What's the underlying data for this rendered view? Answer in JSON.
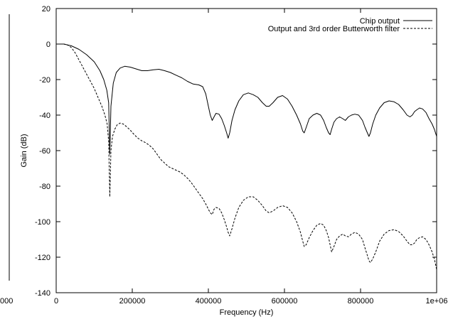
{
  "chart_data": {
    "type": "line",
    "xlabel": "Frequency (Hz)",
    "ylabel": "Gain (dB)",
    "xlim": [
      0,
      1000000
    ],
    "ylim": [
      -140,
      20
    ],
    "xticks": [
      0,
      200000,
      400000,
      600000,
      800000,
      1000000
    ],
    "xtick_labels": [
      "0",
      "200000",
      "400000",
      "600000",
      "800000",
      "1e+06"
    ],
    "yticks": [
      -140,
      -120,
      -100,
      -80,
      -60,
      -40,
      -20,
      0,
      20
    ],
    "ytick_labels": [
      "-140",
      "-120",
      "-100",
      "-80",
      "-60",
      "-40",
      "-20",
      "0",
      "20"
    ],
    "left_edge_fragment": "000",
    "grid": false,
    "legend_position": "top-right",
    "series": [
      {
        "name": "Chip output",
        "style": "solid",
        "color": "#000000",
        "x": [
          0,
          20000,
          40000,
          60000,
          80000,
          100000,
          115000,
          125000,
          133000,
          138000,
          141000,
          144000,
          150000,
          158000,
          168000,
          180000,
          195000,
          210000,
          225000,
          240000,
          255000,
          270000,
          285000,
          300000,
          315000,
          330000,
          345000,
          360000,
          375000,
          385000,
          393000,
          400000,
          405000,
          410000,
          415000,
          420000,
          428000,
          435000,
          442000,
          448000,
          452000,
          456000,
          462000,
          470000,
          480000,
          492000,
          505000,
          518000,
          530000,
          542000,
          552000,
          560000,
          570000,
          582000,
          595000,
          608000,
          620000,
          632000,
          642000,
          648000,
          652000,
          657000,
          665000,
          675000,
          685000,
          695000,
          703000,
          710000,
          716000,
          720000,
          724000,
          730000,
          737000,
          745000,
          753000,
          760000,
          768000,
          776000,
          785000,
          795000,
          805000,
          812000,
          818000,
          822000,
          826000,
          832000,
          840000,
          850000,
          862000,
          875000,
          888000,
          900000,
          912000,
          922000,
          930000,
          936000,
          942000,
          948000,
          955000,
          963000,
          972000,
          980000,
          988000,
          994000,
          1000000
        ],
        "y": [
          0,
          0,
          -1,
          -3,
          -6,
          -10,
          -15,
          -20,
          -26,
          -33,
          -62,
          -35,
          -22,
          -16,
          -13.5,
          -12.5,
          -13,
          -14,
          -15,
          -15,
          -14.5,
          -14.2,
          -15,
          -16,
          -17.5,
          -19,
          -21,
          -22.5,
          -23,
          -24,
          -28,
          -35,
          -40,
          -43,
          -41,
          -39,
          -39.5,
          -42,
          -46,
          -50,
          -53,
          -50,
          -43,
          -37,
          -32,
          -28.5,
          -27.5,
          -28.5,
          -30,
          -33,
          -35,
          -35,
          -33,
          -30,
          -29,
          -31,
          -35,
          -40,
          -45,
          -49,
          -50,
          -47,
          -42,
          -40,
          -39,
          -40,
          -43,
          -47,
          -50,
          -51,
          -48,
          -44,
          -42,
          -41,
          -42,
          -43,
          -41,
          -40,
          -39.5,
          -40,
          -43,
          -47,
          -50,
          -52,
          -50,
          -45,
          -40,
          -36,
          -33,
          -32,
          -32.5,
          -34,
          -37,
          -40,
          -41,
          -40,
          -38,
          -37,
          -36,
          -36.5,
          -38.5,
          -42,
          -45,
          -48,
          -52
        ]
      },
      {
        "name": "Output and 3rd order Butterworth filter",
        "style": "dashed",
        "color": "#000000",
        "x": [
          0,
          20000,
          30000,
          40000,
          50000,
          60000,
          70000,
          80000,
          90000,
          100000,
          110000,
          120000,
          128000,
          134000,
          138000,
          141000,
          144000,
          148000,
          154000,
          160000,
          168000,
          176000,
          185000,
          195000,
          205000,
          215000,
          225000,
          235000,
          245000,
          255000,
          265000,
          275000,
          285000,
          295000,
          305000,
          315000,
          325000,
          335000,
          345000,
          355000,
          365000,
          375000,
          385000,
          393000,
          400000,
          405000,
          410000,
          415000,
          420000,
          428000,
          435000,
          442000,
          448000,
          452000,
          456000,
          462000,
          470000,
          480000,
          492000,
          505000,
          518000,
          530000,
          542000,
          552000,
          560000,
          570000,
          582000,
          595000,
          608000,
          620000,
          632000,
          642000,
          648000,
          652000,
          657000,
          665000,
          675000,
          685000,
          695000,
          703000,
          710000,
          716000,
          720000,
          724000,
          730000,
          737000,
          745000,
          753000,
          760000,
          768000,
          776000,
          785000,
          795000,
          805000,
          812000,
          818000,
          822000,
          826000,
          832000,
          840000,
          850000,
          862000,
          875000,
          888000,
          900000,
          912000,
          922000,
          930000,
          936000,
          942000,
          948000,
          955000,
          963000,
          972000,
          980000,
          988000,
          994000,
          1000000
        ],
        "y": [
          0,
          0,
          -0.5,
          -2,
          -5,
          -9,
          -13,
          -17,
          -21,
          -25,
          -30,
          -35,
          -40,
          -45,
          -55,
          -86,
          -60,
          -52,
          -48,
          -45.5,
          -44.5,
          -45,
          -46.5,
          -48.5,
          -51,
          -53,
          -54.5,
          -55.5,
          -57,
          -59,
          -62,
          -65,
          -67,
          -69,
          -70,
          -71,
          -72,
          -73.5,
          -75.5,
          -78,
          -81,
          -84,
          -87,
          -90,
          -93,
          -95,
          -96,
          -93,
          -92,
          -92.5,
          -95,
          -99,
          -103,
          -106,
          -108,
          -104,
          -98,
          -92,
          -88,
          -86,
          -86,
          -88,
          -91,
          -94,
          -95,
          -94,
          -92,
          -91,
          -92,
          -95,
          -100,
          -106,
          -111,
          -114,
          -113,
          -109,
          -105,
          -102,
          -101,
          -102,
          -105,
          -109,
          -113,
          -117,
          -114,
          -110,
          -108,
          -107,
          -108,
          -108.5,
          -107,
          -106,
          -107,
          -110,
          -115,
          -119,
          -122,
          -123,
          -121,
          -117,
          -111,
          -107,
          -105,
          -104.5,
          -105.5,
          -108,
          -111,
          -113,
          -113,
          -112,
          -110,
          -109,
          -108.5,
          -110,
          -113,
          -117,
          -121,
          -127
        ]
      }
    ]
  }
}
